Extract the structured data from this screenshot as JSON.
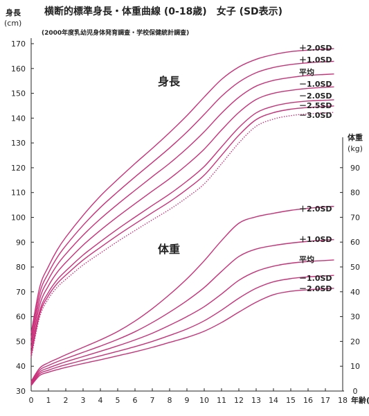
{
  "chart_data": {
    "type": "line",
    "title": "横断的標準身長・体重曲線 (0-18歳)　女子 (SD表示)",
    "subtitle": "(2000年度乳幼児身体発育調査・学校保健統計調査)",
    "x": [
      0,
      0.5,
      1,
      1.5,
      2,
      3,
      4,
      5,
      6,
      7,
      8,
      9,
      10,
      11,
      12,
      13,
      14,
      15,
      16,
      17,
      17.5
    ],
    "xlabel": "年齢(歳)",
    "xlim": [
      0,
      18
    ],
    "xticks": [
      "0",
      "1",
      "2",
      "3",
      "4",
      "5",
      "6",
      "7",
      "8",
      "9",
      "10",
      "11",
      "12",
      "13",
      "14",
      "15",
      "16",
      "17",
      "18"
    ],
    "y_left": {
      "label_line1": "身長",
      "label_line2": "(cm)",
      "lim": [
        30,
        170
      ],
      "ticks": [
        "30",
        "40",
        "50",
        "60",
        "70",
        "80",
        "90",
        "100",
        "110",
        "120",
        "130",
        "140",
        "150",
        "160",
        "170"
      ]
    },
    "y_right": {
      "label_line1": "体重",
      "label_line2": "(kg)",
      "lim": [
        0,
        100
      ],
      "ticks": [
        "0",
        "10",
        "20",
        "30",
        "40",
        "50",
        "60",
        "70",
        "80",
        "90"
      ]
    },
    "height": {
      "group_label": "身長",
      "series": [
        {
          "name": "＋2.0SD",
          "values": [
            53.3,
            72.0,
            80.2,
            86.8,
            92.0,
            100.8,
            108.6,
            115.3,
            121.7,
            127.8,
            134.2,
            141.0,
            148.5,
            155.6,
            160.6,
            163.7,
            165.6,
            166.8,
            167.4,
            167.8,
            168.0
          ]
        },
        {
          "name": "＋1.0SD",
          "values": [
            51.4,
            69.6,
            77.6,
            83.8,
            88.6,
            96.8,
            104.0,
            110.3,
            116.3,
            122.1,
            128.0,
            134.4,
            141.5,
            148.8,
            154.5,
            158.3,
            160.4,
            161.6,
            162.3,
            162.7,
            162.9
          ]
        },
        {
          "name": "平均",
          "values": [
            49.4,
            67.2,
            75.0,
            80.8,
            85.2,
            92.8,
            99.4,
            105.3,
            110.9,
            116.4,
            121.8,
            127.8,
            134.5,
            142.0,
            148.4,
            152.9,
            155.2,
            156.4,
            157.2,
            157.6,
            157.8
          ]
        },
        {
          "name": "－1.0SD",
          "values": [
            47.4,
            64.8,
            72.4,
            77.8,
            81.8,
            88.8,
            94.8,
            100.3,
            105.5,
            110.6,
            115.6,
            121.2,
            127.5,
            135.2,
            142.3,
            147.5,
            150.0,
            151.2,
            152.0,
            152.4,
            152.6
          ]
        },
        {
          "name": "－2.0SD",
          "values": [
            45.4,
            62.4,
            69.8,
            74.8,
            78.4,
            84.8,
            90.2,
            95.3,
            100.1,
            104.8,
            109.4,
            114.6,
            120.5,
            128.4,
            136.2,
            142.1,
            144.8,
            146.2,
            146.9,
            147.2,
            147.4
          ]
        },
        {
          "name": "－2.5SD",
          "values": [
            44.4,
            61.2,
            68.5,
            73.3,
            76.7,
            82.8,
            87.9,
            92.8,
            97.4,
            101.9,
            106.3,
            111.3,
            117.0,
            125.0,
            133.1,
            139.4,
            142.2,
            143.6,
            144.3,
            144.7,
            144.9
          ]
        },
        {
          "name": "－3.0SD",
          "values": [
            43.4,
            60.0,
            67.2,
            71.8,
            75.0,
            80.8,
            85.6,
            90.3,
            94.7,
            99.0,
            103.2,
            108.0,
            113.5,
            121.6,
            130.0,
            136.7,
            139.6,
            141.0,
            141.7,
            142.1,
            142.3
          ],
          "dotted": true
        }
      ]
    },
    "weight": {
      "group_label": "体重",
      "series": [
        {
          "name": "＋2.0SD",
          "values": [
            3.9,
            9.3,
            11.4,
            13.0,
            14.6,
            17.6,
            20.6,
            24.0,
            28.2,
            33.2,
            38.9,
            45.2,
            52.5,
            60.6,
            67.6,
            70.2,
            71.6,
            72.8,
            73.6,
            74.2,
            74.4
          ]
        },
        {
          "name": "＋1.0SD",
          "values": [
            3.5,
            8.5,
            10.3,
            11.8,
            13.1,
            15.6,
            18.1,
            20.8,
            23.9,
            27.6,
            31.8,
            36.4,
            41.7,
            48.2,
            54.2,
            57.2,
            58.6,
            59.6,
            60.3,
            60.8,
            61.0
          ]
        },
        {
          "name": "平均",
          "values": [
            3.0,
            7.7,
            9.3,
            10.6,
            11.8,
            13.9,
            16.0,
            18.2,
            20.6,
            23.3,
            26.5,
            30.0,
            34.0,
            39.1,
            44.6,
            48.2,
            50.3,
            51.5,
            52.2,
            52.6,
            52.8
          ]
        },
        {
          "name": "－1.0SD",
          "values": [
            2.6,
            7.0,
            8.4,
            9.6,
            10.6,
            12.4,
            14.2,
            16.0,
            17.9,
            20.0,
            22.4,
            25.0,
            28.3,
            32.6,
            37.4,
            41.4,
            44.0,
            45.3,
            46.0,
            46.4,
            46.6
          ]
        },
        {
          "name": "－2.0SD",
          "values": [
            2.2,
            6.3,
            7.6,
            8.6,
            9.5,
            11.1,
            12.6,
            14.2,
            15.8,
            17.6,
            19.6,
            21.6,
            24.1,
            27.6,
            31.8,
            35.8,
            38.8,
            40.2,
            40.8,
            41.2,
            41.4
          ]
        }
      ]
    },
    "line_color": "#c8317a",
    "grid": false
  }
}
